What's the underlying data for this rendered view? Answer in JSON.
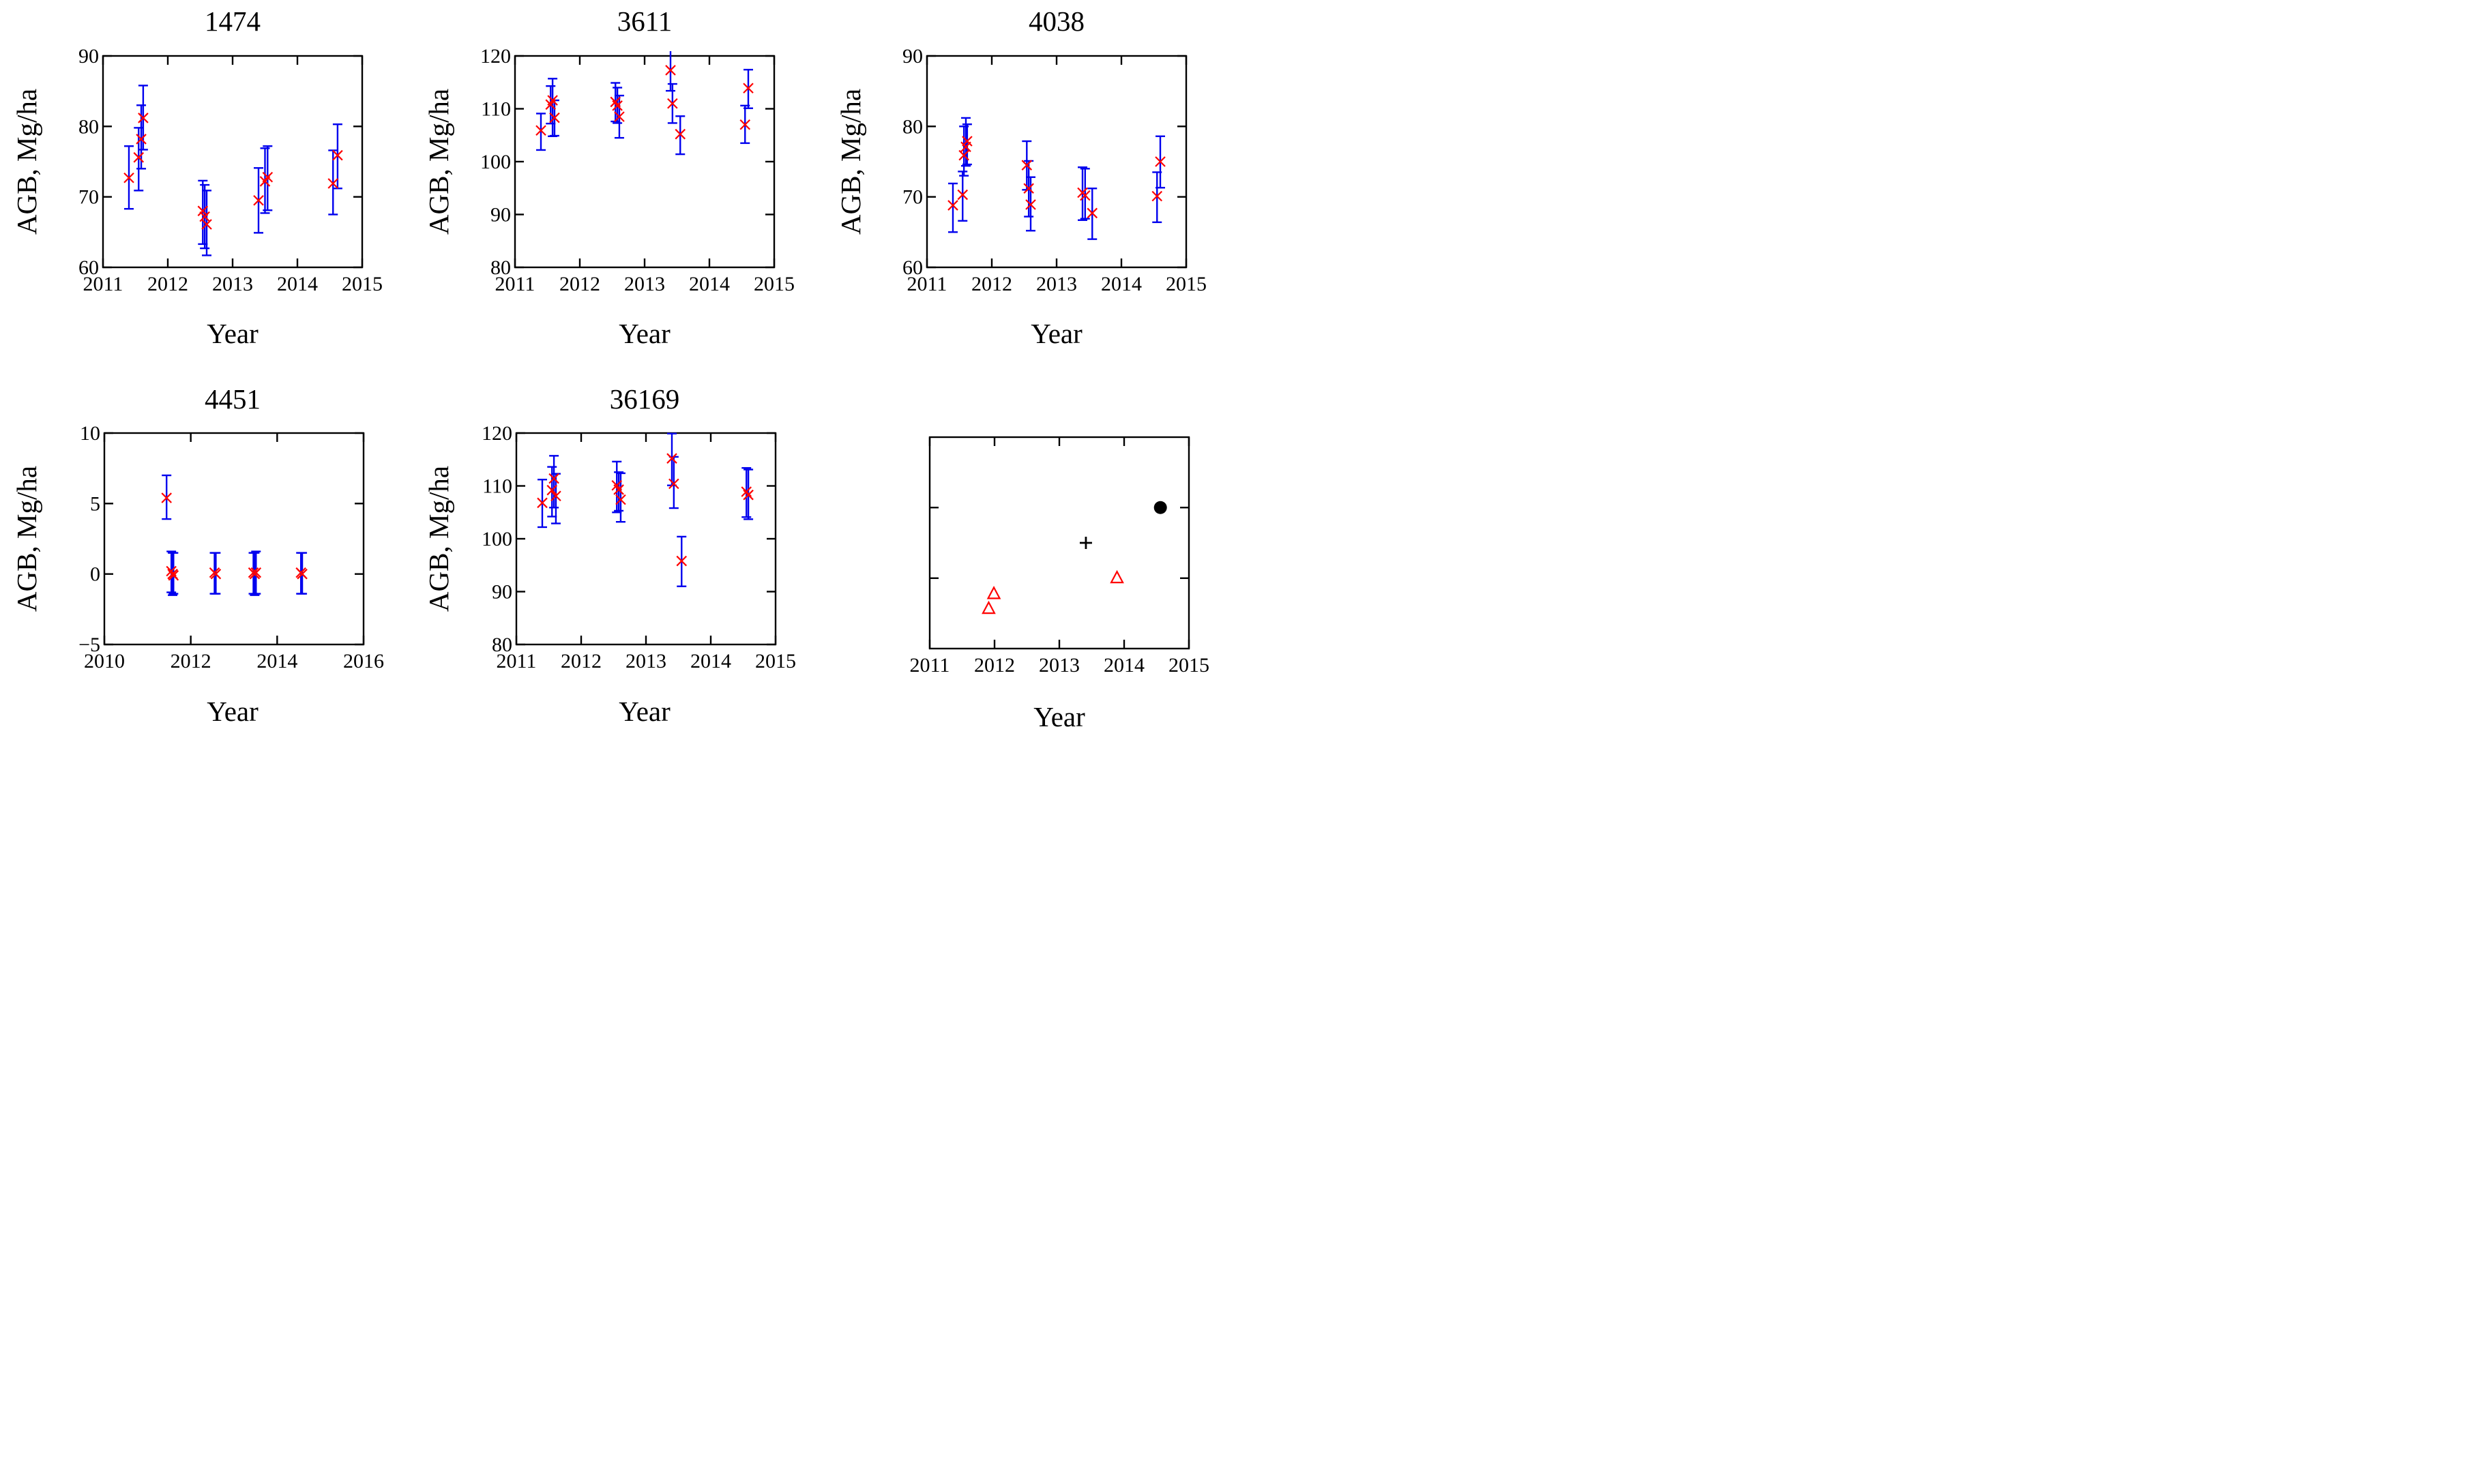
{
  "style": {
    "marker_color": "#ff0000",
    "error_bar_color": "#0000ee",
    "black_marker_color": "#000000",
    "axis_color": "#000000",
    "background": "#ffffff"
  },
  "chart_data": [
    {
      "type": "scatter",
      "title": "1474",
      "xlabel": "Year",
      "ylabel": "AGB, Mg/ha",
      "xlim": [
        2011,
        2015
      ],
      "xticks": [
        2011,
        2012,
        2013,
        2014,
        2015
      ],
      "ylim": [
        60,
        90
      ],
      "yticks": [
        60,
        70,
        80,
        90
      ],
      "grid": false,
      "series": [
        {
          "name": "agb-estimates",
          "marker": "x",
          "color": "#ff0000",
          "bar_color": "#0000ee",
          "points": [
            [
              2011.4,
              72.7,
              68.3,
              77.2
            ],
            [
              2011.55,
              75.6,
              70.9,
              79.8
            ],
            [
              2011.59,
              78.2,
              74.0,
              83.0
            ],
            [
              2011.62,
              81.2,
              76.7,
              85.8
            ],
            [
              2012.54,
              68.0,
              63.3,
              72.3
            ],
            [
              2012.57,
              67.2,
              62.7,
              71.7
            ],
            [
              2012.6,
              66.1,
              61.7,
              70.9
            ],
            [
              2013.4,
              69.5,
              64.9,
              74.1
            ],
            [
              2013.5,
              72.2,
              67.7,
              76.9
            ],
            [
              2013.54,
              72.8,
              68.1,
              77.2
            ],
            [
              2014.55,
              71.9,
              67.5,
              76.6
            ],
            [
              2014.62,
              75.9,
              71.2,
              80.3
            ]
          ]
        }
      ]
    },
    {
      "type": "scatter",
      "title": "3611",
      "xlabel": "Year",
      "ylabel": "AGB, Mg/ha",
      "xlim": [
        2011,
        2015
      ],
      "xticks": [
        2011,
        2012,
        2013,
        2014,
        2015
      ],
      "ylim": [
        80,
        120
      ],
      "yticks": [
        80,
        90,
        100,
        110,
        120
      ],
      "grid": false,
      "series": [
        {
          "name": "agb-estimates",
          "marker": "x",
          "color": "#ff0000",
          "bar_color": "#0000ee",
          "points": [
            [
              2011.4,
              105.9,
              102.2,
              109.1
            ],
            [
              2011.55,
              110.8,
              107.2,
              114.3
            ],
            [
              2011.58,
              111.6,
              104.8,
              115.7
            ],
            [
              2011.61,
              108.3,
              104.9,
              111.6
            ],
            [
              2012.55,
              111.3,
              107.6,
              114.9
            ],
            [
              2012.58,
              110.6,
              107.3,
              114.0
            ],
            [
              2012.61,
              108.5,
              104.5,
              112.5
            ],
            [
              2013.4,
              117.3,
              113.4,
              120.9
            ],
            [
              2013.43,
              111.0,
              107.3,
              114.7
            ],
            [
              2013.55,
              105.2,
              101.4,
              108.6
            ],
            [
              2014.55,
              107.0,
              103.5,
              110.6
            ],
            [
              2014.6,
              113.9,
              110.1,
              117.4
            ]
          ]
        }
      ]
    },
    {
      "type": "scatter",
      "title": "4038",
      "xlabel": "Year",
      "ylabel": "AGB, Mg/ha",
      "xlim": [
        2011,
        2015
      ],
      "xticks": [
        2011,
        2012,
        2013,
        2014,
        2015
      ],
      "ylim": [
        60,
        90
      ],
      "yticks": [
        60,
        70,
        80,
        90
      ],
      "grid": false,
      "series": [
        {
          "name": "agb-estimates",
          "marker": "x",
          "color": "#ff0000",
          "bar_color": "#0000ee",
          "points": [
            [
              2011.4,
              68.8,
              65.0,
              71.9
            ],
            [
              2011.55,
              70.3,
              66.6,
              73.6
            ],
            [
              2011.57,
              75.9,
              73.0,
              80.0
            ],
            [
              2011.6,
              77.1,
              74.4,
              81.2
            ],
            [
              2011.62,
              77.9,
              74.6,
              80.3
            ],
            [
              2012.54,
              74.5,
              71.0,
              77.9
            ],
            [
              2012.57,
              71.2,
              67.2,
              75.1
            ],
            [
              2012.6,
              68.9,
              65.2,
              72.8
            ],
            [
              2013.4,
              70.6,
              66.7,
              74.2
            ],
            [
              2013.44,
              70.2,
              66.9,
              74.0
            ],
            [
              2013.55,
              67.7,
              64.0,
              71.2
            ],
            [
              2014.55,
              70.1,
              66.4,
              73.5
            ],
            [
              2014.6,
              75.0,
              71.3,
              78.6
            ]
          ]
        }
      ]
    },
    {
      "type": "scatter",
      "title": "4451",
      "xlabel": "Year",
      "ylabel": "AGB, Mg/ha",
      "xlim": [
        2010,
        2016
      ],
      "xticks": [
        2010,
        2012,
        2014,
        2016
      ],
      "ylim": [
        -5,
        10
      ],
      "yticks": [
        -5,
        0,
        5,
        10
      ],
      "grid": false,
      "series": [
        {
          "name": "agb-estimates",
          "marker": "x",
          "color": "#ff0000",
          "bar_color": "#0000ee",
          "points": [
            [
              2011.44,
              5.4,
              3.9,
              7.0
            ],
            [
              2011.55,
              0.2,
              -1.3,
              1.6
            ],
            [
              2011.58,
              0.0,
              -1.5,
              1.5
            ],
            [
              2011.6,
              -0.1,
              -1.4,
              1.5
            ],
            [
              2012.55,
              0.1,
              -1.4,
              1.5
            ],
            [
              2012.58,
              0.0,
              -1.4,
              1.5
            ],
            [
              2013.45,
              0.1,
              -1.4,
              1.5
            ],
            [
              2013.48,
              0.0,
              -1.5,
              1.5
            ],
            [
              2013.51,
              0.1,
              -1.4,
              1.6
            ],
            [
              2014.55,
              0.1,
              -1.4,
              1.5
            ],
            [
              2014.58,
              0.0,
              -1.4,
              1.5
            ]
          ]
        }
      ]
    },
    {
      "type": "scatter",
      "title": "36169",
      "xlabel": "Year",
      "ylabel": "AGB, Mg/ha",
      "xlim": [
        2011,
        2015
      ],
      "xticks": [
        2011,
        2012,
        2013,
        2014,
        2015
      ],
      "ylim": [
        80,
        120
      ],
      "yticks": [
        80,
        90,
        100,
        110,
        120
      ],
      "grid": false,
      "series": [
        {
          "name": "agb-estimates",
          "marker": "x",
          "color": "#ff0000",
          "bar_color": "#0000ee",
          "points": [
            [
              2011.4,
              106.8,
              102.2,
              111.2
            ],
            [
              2011.55,
              109.2,
              104.2,
              113.6
            ],
            [
              2011.58,
              111.4,
              105.9,
              115.7
            ],
            [
              2011.61,
              108.1,
              102.9,
              112.3
            ],
            [
              2012.55,
              110.1,
              105.0,
              114.6
            ],
            [
              2012.58,
              109.3,
              105.3,
              112.6
            ],
            [
              2012.61,
              107.4,
              103.2,
              112.4
            ],
            [
              2013.4,
              115.2,
              110.1,
              119.9
            ],
            [
              2013.43,
              110.4,
              105.8,
              115.5
            ],
            [
              2013.55,
              95.8,
              91.0,
              100.4
            ],
            [
              2014.55,
              108.9,
              104.1,
              113.4
            ],
            [
              2014.58,
              108.3,
              103.7,
              113.1
            ]
          ]
        }
      ]
    },
    {
      "type": "scatter",
      "title": "",
      "xlabel": "Year",
      "ylabel": "",
      "xlim": [
        2011,
        2015
      ],
      "xticks": [
        2011,
        2012,
        2013,
        2014,
        2015
      ],
      "ylim": [
        0,
        1
      ],
      "yticks": [
        0.333,
        0.667
      ],
      "show_ytick_labels": false,
      "grid": false,
      "series": [
        {
          "name": "open-triangle-markers",
          "marker": "triangle",
          "color": "#ff0000",
          "points": [
            [
              2011.91,
              0.19
            ],
            [
              2011.99,
              0.26
            ],
            [
              2013.89,
              0.335
            ]
          ]
        },
        {
          "name": "plus-marker",
          "marker": "plus",
          "color": "#000000",
          "points": [
            [
              2013.41,
              0.5
            ]
          ]
        },
        {
          "name": "filled-circle-marker",
          "marker": "circle",
          "color": "#000000",
          "points": [
            [
              2014.56,
              0.667
            ]
          ]
        }
      ]
    }
  ]
}
